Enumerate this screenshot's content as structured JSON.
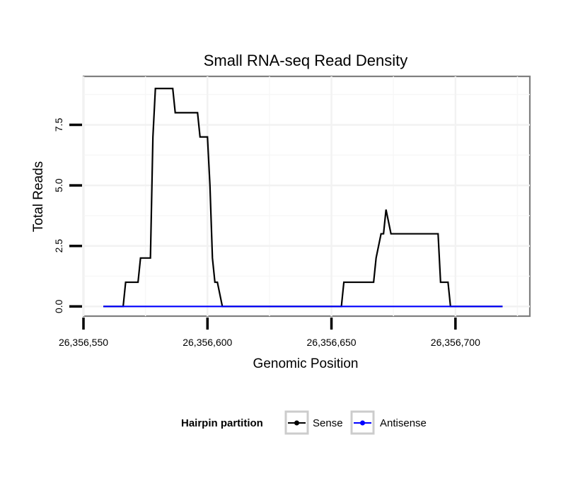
{
  "chart_data": {
    "type": "line",
    "title": "Small RNA-seq Read Density",
    "xlabel": "Genomic Position",
    "ylabel": "Total Reads",
    "xlim": [
      26356550,
      26356730
    ],
    "ylim": [
      -0.4,
      9.5
    ],
    "x_ticks": [
      26356550,
      26356600,
      26356650,
      26356700
    ],
    "x_tick_labels": [
      "26,356,550",
      "26,356,600",
      "26,356,650",
      "26,356,700"
    ],
    "y_ticks": [
      0,
      2.5,
      5,
      7.5
    ],
    "y_tick_labels": [
      "0.0",
      "2.5",
      "5.0",
      "7.5"
    ],
    "grid": true,
    "legend": {
      "title": "Hairpin partition",
      "placement": "bottom",
      "entries": [
        "Sense",
        "Antisense"
      ]
    },
    "series": [
      {
        "name": "Sense",
        "color": "#000000",
        "x": [
          26356558,
          26356566,
          26356567,
          26356572,
          26356573,
          26356577,
          26356578,
          26356579,
          26356586,
          26356587,
          26356596,
          26356597,
          26356600,
          26356601,
          26356602,
          26356603,
          26356604,
          26356606,
          26356654,
          26356655,
          26356667,
          26356668,
          26356670,
          26356671,
          26356672,
          26356674,
          26356693,
          26356694,
          26356697,
          26356698,
          26356719
        ],
        "values": [
          0,
          0,
          1,
          1,
          2,
          2,
          7,
          9,
          9,
          8,
          8,
          7,
          7,
          5,
          2,
          1,
          1,
          0,
          0,
          1,
          1,
          2,
          3,
          3,
          4,
          3,
          3,
          1,
          1,
          0,
          0
        ]
      },
      {
        "name": "Antisense",
        "color": "#0000ff",
        "x": [
          26356558,
          26356719
        ],
        "values": [
          0,
          0
        ]
      }
    ]
  }
}
